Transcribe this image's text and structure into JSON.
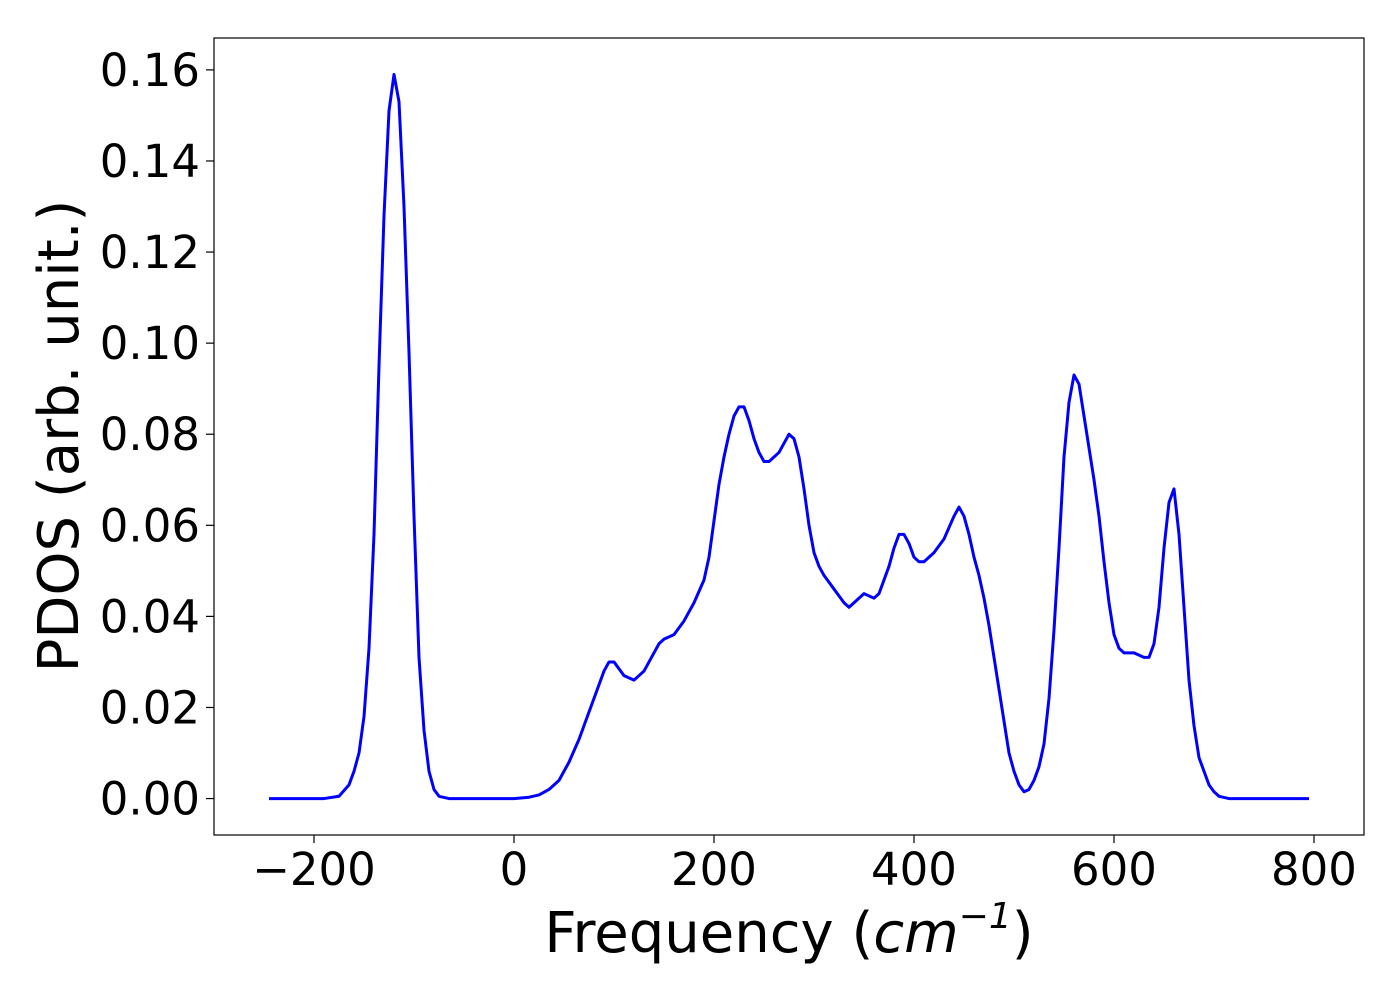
{
  "chart_data": {
    "type": "line",
    "title": "",
    "xlabel": "Frequency",
    "xlabel_unit_open": " (",
    "xlabel_unit_base": "cm",
    "xlabel_unit_exp": "−1",
    "xlabel_unit_close": ")",
    "ylabel": "PDOS (arb. unit.)",
    "xlim": [
      -300,
      850
    ],
    "ylim": [
      -0.008,
      0.167
    ],
    "grid": false,
    "legend": "none",
    "line_color": "#0000ff",
    "xticks": [
      {
        "value": -200,
        "label": "−200"
      },
      {
        "value": 0,
        "label": "0"
      },
      {
        "value": 200,
        "label": "200"
      },
      {
        "value": 400,
        "label": "400"
      },
      {
        "value": 600,
        "label": "600"
      },
      {
        "value": 800,
        "label": "800"
      }
    ],
    "yticks": [
      {
        "value": 0.0,
        "label": "0.00"
      },
      {
        "value": 0.02,
        "label": "0.02"
      },
      {
        "value": 0.04,
        "label": "0.04"
      },
      {
        "value": 0.06,
        "label": "0.06"
      },
      {
        "value": 0.08,
        "label": "0.08"
      },
      {
        "value": 0.1,
        "label": "0.10"
      },
      {
        "value": 0.12,
        "label": "0.12"
      },
      {
        "value": 0.14,
        "label": "0.14"
      },
      {
        "value": 0.16,
        "label": "0.16"
      }
    ],
    "series": [
      {
        "points": [
          [
            -245,
            0.0
          ],
          [
            -190,
            0.0
          ],
          [
            -175,
            0.0005
          ],
          [
            -165,
            0.003
          ],
          [
            -160,
            0.006
          ],
          [
            -155,
            0.01
          ],
          [
            -150,
            0.018
          ],
          [
            -145,
            0.033
          ],
          [
            -140,
            0.058
          ],
          [
            -135,
            0.095
          ],
          [
            -130,
            0.128
          ],
          [
            -125,
            0.151
          ],
          [
            -120,
            0.159
          ],
          [
            -115,
            0.153
          ],
          [
            -110,
            0.13
          ],
          [
            -105,
            0.098
          ],
          [
            -100,
            0.062
          ],
          [
            -95,
            0.031
          ],
          [
            -90,
            0.015
          ],
          [
            -85,
            0.006
          ],
          [
            -80,
            0.002
          ],
          [
            -75,
            0.0005
          ],
          [
            -65,
            0.0
          ],
          [
            0,
            0.0
          ],
          [
            15,
            0.0003
          ],
          [
            25,
            0.0008
          ],
          [
            35,
            0.002
          ],
          [
            45,
            0.004
          ],
          [
            55,
            0.008
          ],
          [
            65,
            0.013
          ],
          [
            75,
            0.019
          ],
          [
            85,
            0.025
          ],
          [
            90,
            0.028
          ],
          [
            95,
            0.03
          ],
          [
            100,
            0.03
          ],
          [
            110,
            0.027
          ],
          [
            120,
            0.026
          ],
          [
            130,
            0.028
          ],
          [
            140,
            0.032
          ],
          [
            145,
            0.034
          ],
          [
            150,
            0.035
          ],
          [
            160,
            0.036
          ],
          [
            170,
            0.039
          ],
          [
            180,
            0.043
          ],
          [
            190,
            0.048
          ],
          [
            195,
            0.053
          ],
          [
            200,
            0.061
          ],
          [
            205,
            0.069
          ],
          [
            210,
            0.075
          ],
          [
            215,
            0.08
          ],
          [
            220,
            0.084
          ],
          [
            225,
            0.086
          ],
          [
            230,
            0.086
          ],
          [
            235,
            0.083
          ],
          [
            240,
            0.079
          ],
          [
            245,
            0.076
          ],
          [
            250,
            0.074
          ],
          [
            255,
            0.074
          ],
          [
            260,
            0.075
          ],
          [
            265,
            0.076
          ],
          [
            270,
            0.078
          ],
          [
            275,
            0.08
          ],
          [
            280,
            0.079
          ],
          [
            285,
            0.075
          ],
          [
            290,
            0.068
          ],
          [
            295,
            0.06
          ],
          [
            300,
            0.054
          ],
          [
            305,
            0.051
          ],
          [
            310,
            0.049
          ],
          [
            320,
            0.046
          ],
          [
            330,
            0.043
          ],
          [
            335,
            0.042
          ],
          [
            340,
            0.043
          ],
          [
            350,
            0.045
          ],
          [
            360,
            0.044
          ],
          [
            365,
            0.045
          ],
          [
            370,
            0.048
          ],
          [
            375,
            0.051
          ],
          [
            380,
            0.055
          ],
          [
            385,
            0.058
          ],
          [
            390,
            0.058
          ],
          [
            395,
            0.056
          ],
          [
            400,
            0.053
          ],
          [
            405,
            0.052
          ],
          [
            410,
            0.052
          ],
          [
            420,
            0.054
          ],
          [
            430,
            0.057
          ],
          [
            440,
            0.062
          ],
          [
            445,
            0.064
          ],
          [
            450,
            0.062
          ],
          [
            455,
            0.058
          ],
          [
            460,
            0.053
          ],
          [
            465,
            0.049
          ],
          [
            470,
            0.044
          ],
          [
            475,
            0.038
          ],
          [
            480,
            0.031
          ],
          [
            485,
            0.024
          ],
          [
            490,
            0.017
          ],
          [
            495,
            0.01
          ],
          [
            500,
            0.006
          ],
          [
            505,
            0.003
          ],
          [
            510,
            0.0015
          ],
          [
            515,
            0.002
          ],
          [
            520,
            0.004
          ],
          [
            525,
            0.007
          ],
          [
            530,
            0.012
          ],
          [
            535,
            0.022
          ],
          [
            540,
            0.037
          ],
          [
            545,
            0.055
          ],
          [
            550,
            0.075
          ],
          [
            555,
            0.087
          ],
          [
            560,
            0.093
          ],
          [
            565,
            0.091
          ],
          [
            570,
            0.084
          ],
          [
            575,
            0.077
          ],
          [
            580,
            0.07
          ],
          [
            585,
            0.062
          ],
          [
            590,
            0.052
          ],
          [
            595,
            0.043
          ],
          [
            600,
            0.036
          ],
          [
            605,
            0.033
          ],
          [
            610,
            0.032
          ],
          [
            620,
            0.032
          ],
          [
            630,
            0.031
          ],
          [
            635,
            0.031
          ],
          [
            640,
            0.034
          ],
          [
            645,
            0.042
          ],
          [
            650,
            0.055
          ],
          [
            655,
            0.065
          ],
          [
            660,
            0.068
          ],
          [
            665,
            0.058
          ],
          [
            670,
            0.042
          ],
          [
            675,
            0.026
          ],
          [
            680,
            0.016
          ],
          [
            685,
            0.009
          ],
          [
            690,
            0.006
          ],
          [
            695,
            0.003
          ],
          [
            700,
            0.0015
          ],
          [
            705,
            0.0005
          ],
          [
            715,
            0.0
          ],
          [
            795,
            0.0
          ]
        ]
      }
    ]
  }
}
